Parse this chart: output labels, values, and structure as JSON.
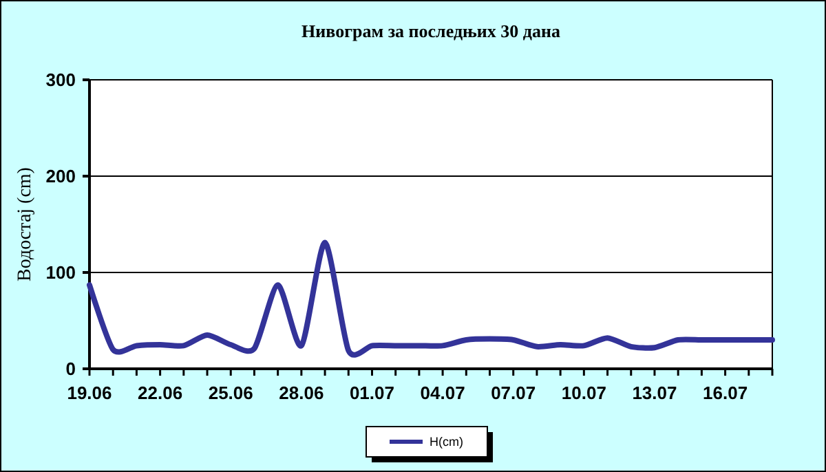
{
  "chart_data": {
    "type": "line",
    "title": "Нивограм за последњих 30 дана",
    "ylabel": "Водостај (cm)",
    "categories": [
      "19.06",
      null,
      null,
      "22.06",
      null,
      null,
      "25.06",
      null,
      null,
      "28.06",
      null,
      null,
      "01.07",
      null,
      null,
      "04.07",
      null,
      null,
      "07.07",
      null,
      null,
      "10.07",
      null,
      null,
      "13.07",
      null,
      null,
      "16.07",
      null,
      null
    ],
    "series": [
      {
        "name": "H(cm)",
        "color": "#333399",
        "values": [
          87,
          20,
          24,
          25,
          24,
          35,
          25,
          21,
          87,
          24,
          131,
          19,
          24,
          24,
          24,
          24,
          30,
          31,
          30,
          23,
          25,
          24,
          32,
          23,
          22,
          30,
          30,
          30,
          30,
          30
        ]
      }
    ],
    "ylim": [
      0,
      300
    ],
    "yticks": [
      0,
      100,
      200,
      300
    ],
    "grid": "y",
    "legend": "bottom",
    "marker": "none",
    "line_style": "solid"
  }
}
